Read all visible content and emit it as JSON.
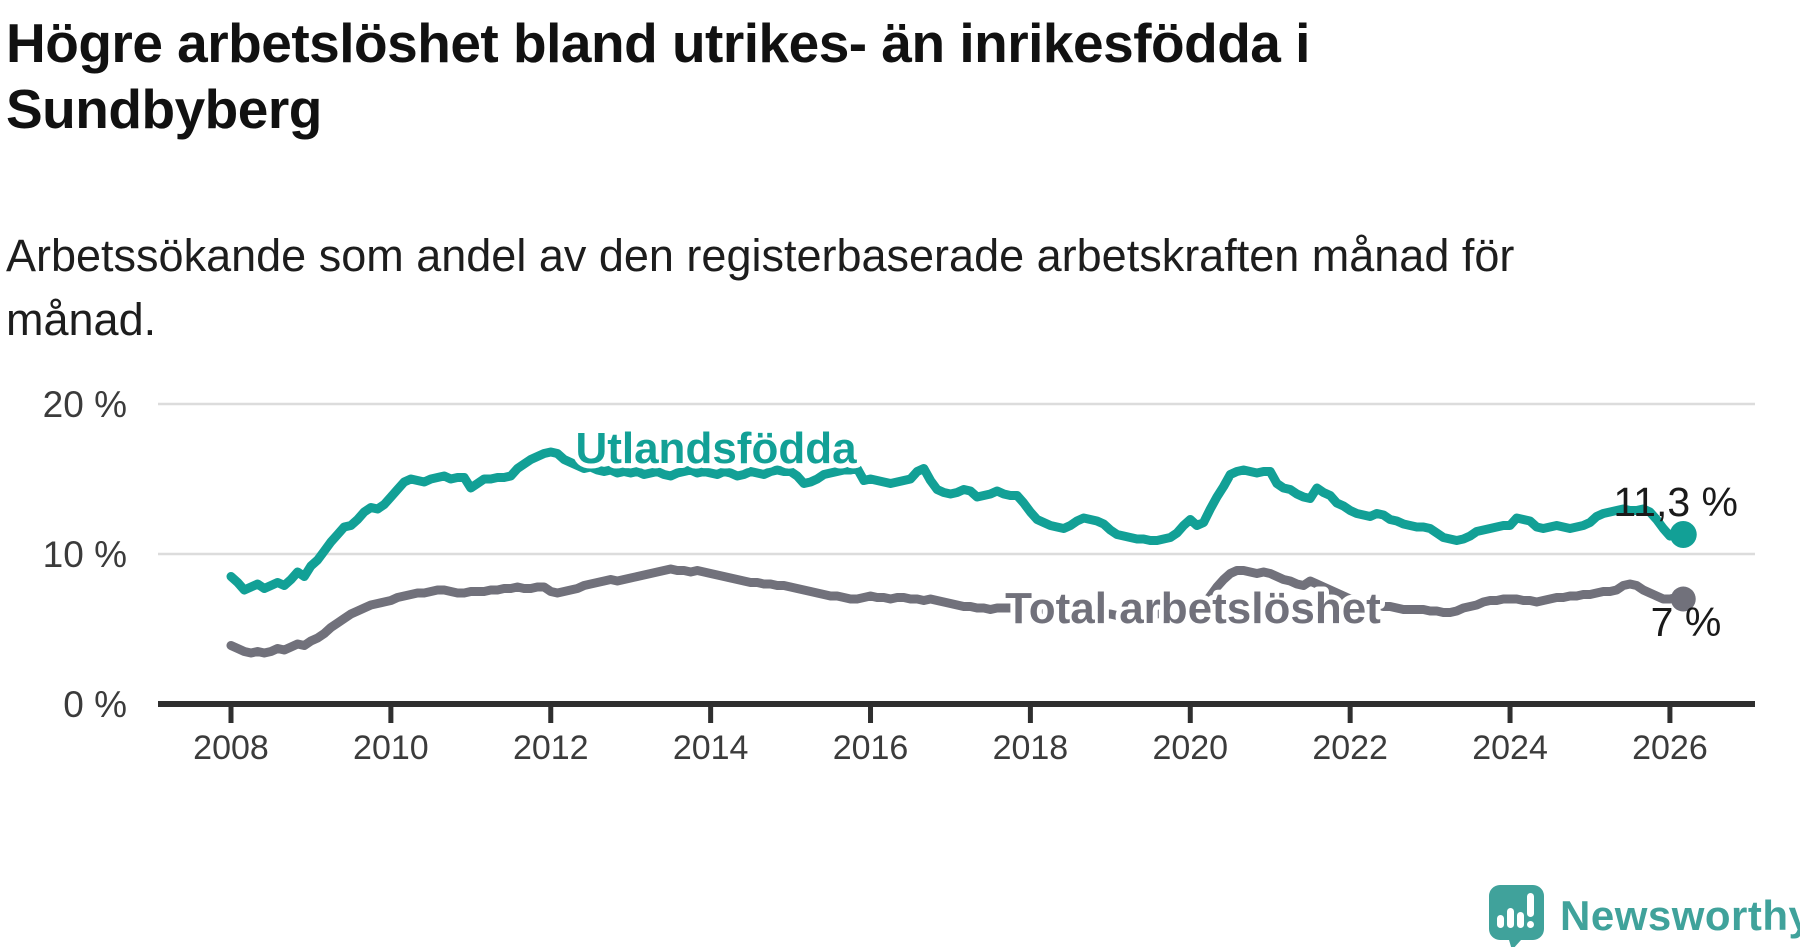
{
  "page": {
    "title_lines": [
      "Högre arbetslöshet bland utrikes- än inrikesfödda i",
      "Sundbyberg"
    ],
    "subtitle_lines": [
      "Arbetssökande som andel av den registerbaserade arbetskraften månad för",
      "månad."
    ]
  },
  "colors": {
    "teal_series": "#12a096",
    "gray_series": "#71717b",
    "gridline": "#dcdcdc",
    "axis": "#2f2f2f",
    "tick_text": "#3b3b3b",
    "logo_teal": "#40a29b"
  },
  "footer": {
    "brand": "Newsworthy",
    "logo_icon": "speech-bubble-bar-chart-icon"
  },
  "chart_data": {
    "type": "line",
    "title": "Högre arbetslöshet bland utrikes- än inrikesfödda i Sundbyberg",
    "subtitle": "Arbetssökande som andel av den registerbaserade arbetskraften månad för månad.",
    "unit": "%",
    "frequency": "monthly",
    "x_start": "2008-01",
    "x_end": "2026-03",
    "ylim": [
      0,
      21
    ],
    "grid": "horizontal-only",
    "legend_position": "inline-labels",
    "y_ticks": [
      {
        "value": 0,
        "label": "0 %"
      },
      {
        "value": 10,
        "label": "10 %"
      },
      {
        "value": 20,
        "label": "20 %"
      }
    ],
    "x_ticks": [
      {
        "year": 2008,
        "label": "2008"
      },
      {
        "year": 2010,
        "label": "2010"
      },
      {
        "year": 2012,
        "label": "2012"
      },
      {
        "year": 2014,
        "label": "2014"
      },
      {
        "year": 2016,
        "label": "2016"
      },
      {
        "year": 2018,
        "label": "2018"
      },
      {
        "year": 2020,
        "label": "2020"
      },
      {
        "year": 2022,
        "label": "2022"
      },
      {
        "year": 2024,
        "label": "2024"
      },
      {
        "year": 2026,
        "label": "2026"
      }
    ],
    "series": [
      {
        "name": "Total arbetslöshet",
        "color": "#71717b",
        "end_label": "7 %",
        "end_value": 7.0,
        "values": [
          3.9,
          3.7,
          3.5,
          3.4,
          3.5,
          3.4,
          3.5,
          3.7,
          3.6,
          3.8,
          4.0,
          3.9,
          4.2,
          4.4,
          4.7,
          5.1,
          5.4,
          5.7,
          6.0,
          6.2,
          6.4,
          6.6,
          6.7,
          6.8,
          6.9,
          7.1,
          7.2,
          7.3,
          7.4,
          7.4,
          7.5,
          7.6,
          7.6,
          7.5,
          7.4,
          7.4,
          7.5,
          7.5,
          7.5,
          7.6,
          7.6,
          7.7,
          7.7,
          7.8,
          7.7,
          7.7,
          7.8,
          7.8,
          7.5,
          7.4,
          7.5,
          7.6,
          7.7,
          7.9,
          8.0,
          8.1,
          8.2,
          8.3,
          8.2,
          8.3,
          8.4,
          8.5,
          8.6,
          8.7,
          8.8,
          8.9,
          9.0,
          8.9,
          8.9,
          8.8,
          8.9,
          8.8,
          8.7,
          8.6,
          8.5,
          8.4,
          8.3,
          8.2,
          8.1,
          8.1,
          8.0,
          8.0,
          7.9,
          7.9,
          7.8,
          7.7,
          7.6,
          7.5,
          7.4,
          7.3,
          7.2,
          7.2,
          7.1,
          7.0,
          7.0,
          7.1,
          7.2,
          7.1,
          7.1,
          7.0,
          7.1,
          7.1,
          7.0,
          7.0,
          6.9,
          7.0,
          6.9,
          6.8,
          6.7,
          6.6,
          6.5,
          6.5,
          6.4,
          6.4,
          6.3,
          6.4,
          6.4,
          6.4,
          6.3,
          6.2,
          6.1,
          6.1,
          6.0,
          6.0,
          5.9,
          5.9,
          6.0,
          6.1,
          6.1,
          6.0,
          6.0,
          6.0,
          6.0,
          5.9,
          5.9,
          5.9,
          5.9,
          6.0,
          6.0,
          6.0,
          6.1,
          6.2,
          6.3,
          6.4,
          6.5,
          6.4,
          6.6,
          7.2,
          7.8,
          8.3,
          8.7,
          8.9,
          8.9,
          8.8,
          8.7,
          8.8,
          8.7,
          8.5,
          8.3,
          8.2,
          8.0,
          7.9,
          8.2,
          8.0,
          7.8,
          7.6,
          7.4,
          7.2,
          7.0,
          6.9,
          6.8,
          6.7,
          6.6,
          6.5,
          6.5,
          6.4,
          6.3,
          6.3,
          6.3,
          6.3,
          6.2,
          6.2,
          6.1,
          6.1,
          6.2,
          6.4,
          6.5,
          6.6,
          6.8,
          6.9,
          6.9,
          7.0,
          7.0,
          7.0,
          6.9,
          6.9,
          6.8,
          6.9,
          7.0,
          7.1,
          7.1,
          7.2,
          7.2,
          7.3,
          7.3,
          7.4,
          7.5,
          7.5,
          7.6,
          7.9,
          8.0,
          7.9,
          7.6,
          7.4,
          7.2,
          7.0,
          7.0,
          7.1,
          7.0
        ]
      },
      {
        "name": "Utlandsfödda",
        "color": "#12a096",
        "end_label": "11,3 %",
        "end_value": 11.3,
        "values": [
          8.5,
          8.1,
          7.6,
          7.8,
          8.0,
          7.7,
          7.9,
          8.1,
          7.9,
          8.3,
          8.8,
          8.5,
          9.2,
          9.6,
          10.2,
          10.8,
          11.3,
          11.8,
          11.9,
          12.3,
          12.8,
          13.1,
          13.0,
          13.3,
          13.8,
          14.3,
          14.8,
          15.0,
          14.9,
          14.8,
          15.0,
          15.1,
          15.2,
          15.0,
          15.1,
          15.1,
          14.4,
          14.7,
          15.0,
          15.0,
          15.1,
          15.1,
          15.2,
          15.7,
          16.0,
          16.3,
          16.5,
          16.7,
          16.8,
          16.7,
          16.3,
          16.1,
          15.9,
          15.7,
          15.8,
          15.6,
          15.5,
          15.6,
          15.4,
          15.5,
          15.4,
          15.5,
          15.3,
          15.4,
          15.5,
          15.3,
          15.2,
          15.4,
          15.5,
          15.6,
          15.4,
          15.5,
          15.4,
          15.3,
          15.5,
          15.4,
          15.2,
          15.3,
          15.5,
          15.4,
          15.3,
          15.5,
          15.6,
          15.5,
          15.5,
          15.2,
          14.7,
          14.8,
          15.0,
          15.3,
          15.4,
          15.5,
          15.6,
          15.6,
          15.7,
          14.9,
          15.0,
          14.9,
          14.8,
          14.7,
          14.8,
          14.9,
          15.0,
          15.5,
          15.7,
          14.9,
          14.3,
          14.1,
          14.0,
          14.1,
          14.3,
          14.2,
          13.8,
          13.9,
          14.0,
          14.2,
          14.0,
          13.9,
          13.9,
          13.4,
          12.8,
          12.3,
          12.1,
          11.9,
          11.8,
          11.7,
          11.9,
          12.2,
          12.4,
          12.3,
          12.2,
          12.0,
          11.6,
          11.3,
          11.2,
          11.1,
          11.0,
          11.0,
          10.9,
          10.9,
          11.0,
          11.1,
          11.4,
          11.9,
          12.3,
          11.9,
          12.1,
          13.0,
          13.8,
          14.5,
          15.3,
          15.5,
          15.6,
          15.5,
          15.4,
          15.5,
          15.5,
          14.7,
          14.4,
          14.3,
          14.0,
          13.8,
          13.7,
          14.4,
          14.1,
          13.9,
          13.4,
          13.2,
          12.9,
          12.7,
          12.6,
          12.5,
          12.7,
          12.6,
          12.3,
          12.2,
          12.0,
          11.9,
          11.8,
          11.8,
          11.7,
          11.4,
          11.1,
          11.0,
          10.9,
          11.0,
          11.2,
          11.5,
          11.6,
          11.7,
          11.8,
          11.9,
          11.9,
          12.4,
          12.3,
          12.2,
          11.8,
          11.7,
          11.8,
          11.9,
          11.8,
          11.7,
          11.8,
          11.9,
          12.1,
          12.5,
          12.7,
          12.8,
          12.9,
          13.0,
          12.9,
          12.9,
          13.0,
          12.8,
          12.3,
          11.7,
          11.2,
          11.4,
          11.3
        ]
      }
    ]
  }
}
